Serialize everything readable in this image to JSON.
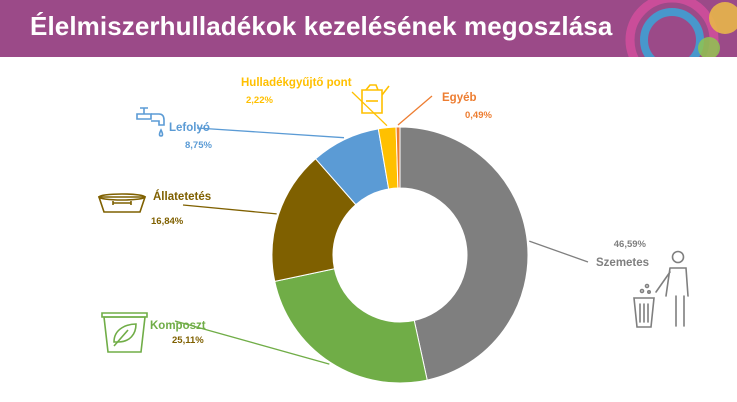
{
  "header": {
    "title": "Élelmiszerhulladékok kezelésének megoszlása"
  },
  "colors": {
    "header_bg": "#9b4a88",
    "Szemetes": "#7f7f7f",
    "Komposzt": "#70ad47",
    "Állatetetés": "#7f6000",
    "Lefolyó": "#5b9bd5",
    "Hulladékgyűjtő pont": "#ffc000",
    "Egyéb": "#ed7d31"
  },
  "chart_data": {
    "type": "pie",
    "donut": true,
    "categories": [
      "Szemetes",
      "Komposzt",
      "Állatetetés",
      "Lefolyó",
      "Hulladékgyűjtő pont",
      "Egyéb"
    ],
    "values": [
      46.59,
      25.11,
      16.84,
      8.75,
      2.22,
      0.49
    ],
    "value_labels": [
      "46,59%",
      "25,11%",
      "16,84%",
      "8,75%",
      "2,22%",
      "0,49%"
    ],
    "icons": [
      "trash-person-icon",
      "compost-bin-icon",
      "pet-bowl-icon",
      "faucet-icon",
      "jerry-can-icon",
      ""
    ],
    "legend": "none"
  }
}
